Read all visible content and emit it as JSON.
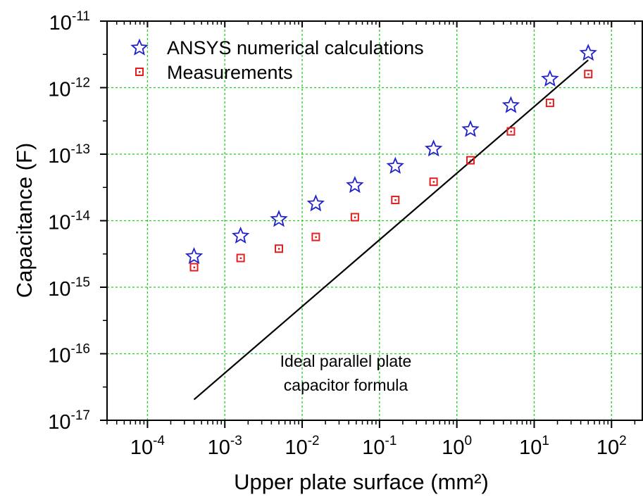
{
  "chart_data": {
    "type": "scatter",
    "xlabel": "Upper plate surface (mm²)",
    "ylabel": "Capacitance (F)",
    "xscale": "log",
    "yscale": "log",
    "xlim": [
      3e-05,
      250
    ],
    "ylim": [
      1e-17,
      1e-11
    ],
    "grid": true,
    "legend_position": "top-left",
    "x_ticks": [
      {
        "base": "10",
        "exp": "-4",
        "value": 0.0001
      },
      {
        "base": "10",
        "exp": "-3",
        "value": 0.001
      },
      {
        "base": "10",
        "exp": "-2",
        "value": 0.01
      },
      {
        "base": "10",
        "exp": "-1",
        "value": 0.1
      },
      {
        "base": "10",
        "exp": "0",
        "value": 1
      },
      {
        "base": "10",
        "exp": "1",
        "value": 10
      },
      {
        "base": "10",
        "exp": "2",
        "value": 100
      }
    ],
    "y_ticks": [
      {
        "base": "10",
        "exp": "-17",
        "value": 1e-17
      },
      {
        "base": "10",
        "exp": "-16",
        "value": 1e-16
      },
      {
        "base": "10",
        "exp": "-15",
        "value": 1e-15
      },
      {
        "base": "10",
        "exp": "-14",
        "value": 1e-14
      },
      {
        "base": "10",
        "exp": "-13",
        "value": 1e-13
      },
      {
        "base": "10",
        "exp": "-12",
        "value": 1e-12
      },
      {
        "base": "10",
        "exp": "-11",
        "value": 1e-11
      }
    ],
    "series": [
      {
        "name": "ANSYS numerical calculations",
        "marker": "star",
        "color": "#2222cc",
        "points": [
          {
            "x": 0.0004,
            "y": 2.9e-15
          },
          {
            "x": 0.0016,
            "y": 5.9e-15
          },
          {
            "x": 0.005,
            "y": 1.05e-14
          },
          {
            "x": 0.015,
            "y": 1.8e-14
          },
          {
            "x": 0.048,
            "y": 3.4e-14
          },
          {
            "x": 0.16,
            "y": 6.6e-14
          },
          {
            "x": 0.5,
            "y": 1.2e-13
          },
          {
            "x": 1.5,
            "y": 2.35e-13
          },
          {
            "x": 5,
            "y": 5.4e-13
          },
          {
            "x": 16,
            "y": 1.35e-12
          },
          {
            "x": 50,
            "y": 3.3e-12
          }
        ]
      },
      {
        "name": "Measurements",
        "marker": "square",
        "color": "#e02020",
        "points": [
          {
            "x": 0.0004,
            "y": 2e-15
          },
          {
            "x": 0.0016,
            "y": 2.75e-15
          },
          {
            "x": 0.005,
            "y": 3.8e-15
          },
          {
            "x": 0.015,
            "y": 5.7e-15
          },
          {
            "x": 0.048,
            "y": 1.13e-14
          },
          {
            "x": 0.16,
            "y": 2.05e-14
          },
          {
            "x": 0.5,
            "y": 3.85e-14
          },
          {
            "x": 1.5,
            "y": 8.1e-14
          },
          {
            "x": 5,
            "y": 2.2e-13
          },
          {
            "x": 16,
            "y": 5.9e-13
          },
          {
            "x": 50,
            "y": 1.6e-12
          }
        ]
      },
      {
        "marker": "line",
        "color": "#000000",
        "points": [
          {
            "x": 0.0004,
            "y": 2.05e-17
          },
          {
            "x": 50,
            "y": 2.6e-12
          }
        ]
      }
    ],
    "annotations": [
      {
        "line1": "Ideal parallel plate",
        "line2": "capacitor formula",
        "x": 0.5,
        "y": 1.25e-16
      }
    ]
  }
}
